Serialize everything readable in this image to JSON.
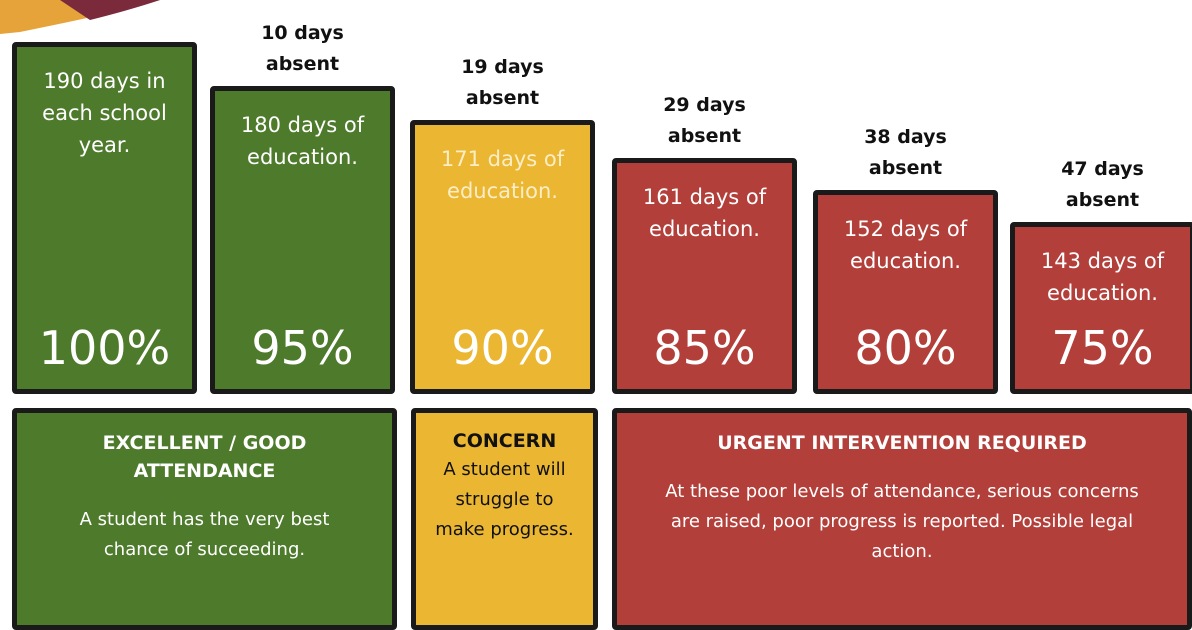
{
  "columns": [
    {
      "text": "190 days in each school year.",
      "percent": "100%"
    },
    {
      "absent": "10 days absent",
      "text": "180 days of education.",
      "percent": "95%"
    },
    {
      "absent": "19 days absent",
      "text": "171 days of education.",
      "percent": "90%"
    },
    {
      "absent": "29 days absent",
      "text": "161 days of education.",
      "percent": "85%"
    },
    {
      "absent": "38 days absent",
      "text": "152 days of education.",
      "percent": "80%"
    },
    {
      "absent": "47 days absent",
      "text": "143 days of education.",
      "percent": "75%"
    }
  ],
  "bands": [
    {
      "title": "EXCELLENT / GOOD ATTENDANCE",
      "text": "A student has the very best chance of succeeding."
    },
    {
      "title": "CONCERN",
      "text": "A student will struggle to make progress."
    },
    {
      "title": "URGENT INTERVENTION REQUIRED",
      "text": "At these poor levels of attendance, serious concerns are raised, poor progress is reported. Possible legal action."
    }
  ]
}
